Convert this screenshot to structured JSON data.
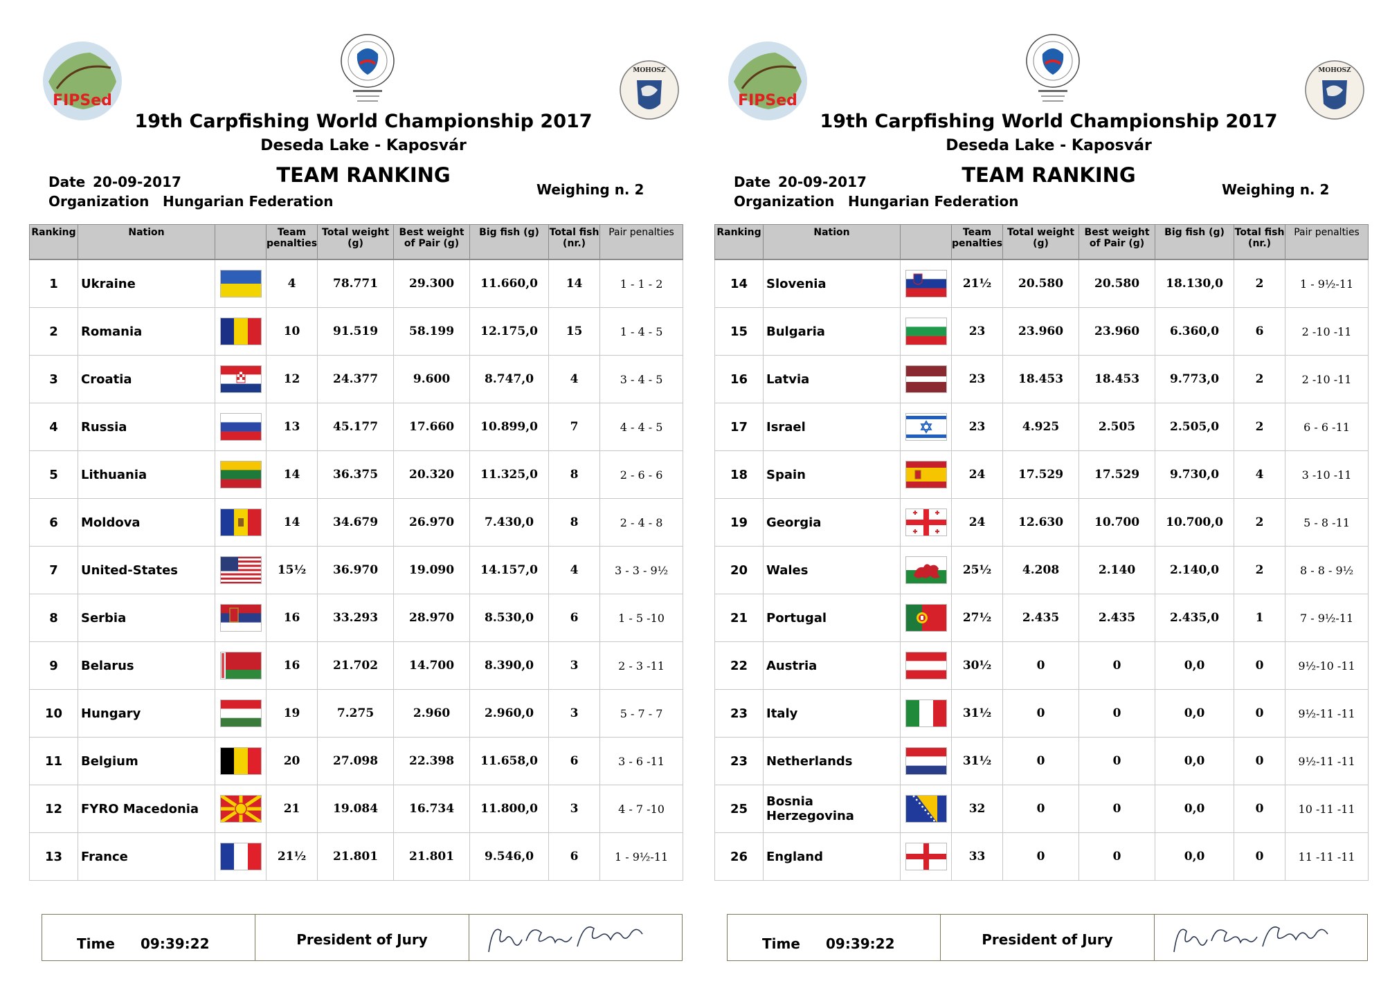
{
  "header": {
    "title": "19th Carpfishing World Championship 2017",
    "venue": "Deseda Lake - Kaposvár",
    "report": "TEAM RANKING",
    "date_label": "Date",
    "date": "20-09-2017",
    "organization_label": "Organization",
    "organization": "Hungarian Federation",
    "weighing": "Weighing n. 2",
    "fipsed_logo_text": "FIPSed",
    "mohosz_logo_text": "MOHOSZ"
  },
  "columns": {
    "ranking": "Ranking",
    "nation": "Nation",
    "team_penalties": "Team penalties",
    "total_weight": "Total weight (g)",
    "best_weight": "Best weight of Pair (g)",
    "big_fish": "Big fish (g)",
    "total_fish": "Total fish (nr.)",
    "pair_penalties": "Pair penalties"
  },
  "left_rows": [
    {
      "rank": "1",
      "nation": "Ukraine",
      "flag": "ukraine-flag-icon",
      "team_pen": "4",
      "total_weight": "78.771",
      "best_pair": "29.300",
      "big_fish": "11.660,0",
      "total_fish": "14",
      "pair_pen": "1 - 1 - 2"
    },
    {
      "rank": "2",
      "nation": "Romania",
      "flag": "romania-flag-icon",
      "team_pen": "10",
      "total_weight": "91.519",
      "best_pair": "58.199",
      "big_fish": "12.175,0",
      "total_fish": "15",
      "pair_pen": "1 - 4 - 5"
    },
    {
      "rank": "3",
      "nation": "Croatia",
      "flag": "croatia-flag-icon",
      "team_pen": "12",
      "total_weight": "24.377",
      "best_pair": "9.600",
      "big_fish": "8.747,0",
      "total_fish": "4",
      "pair_pen": "3 - 4 - 5"
    },
    {
      "rank": "4",
      "nation": "Russia",
      "flag": "russia-flag-icon",
      "team_pen": "13",
      "total_weight": "45.177",
      "best_pair": "17.660",
      "big_fish": "10.899,0",
      "total_fish": "7",
      "pair_pen": "4 - 4 - 5"
    },
    {
      "rank": "5",
      "nation": "Lithuania",
      "flag": "lithuania-flag-icon",
      "team_pen": "14",
      "total_weight": "36.375",
      "best_pair": "20.320",
      "big_fish": "11.325,0",
      "total_fish": "8",
      "pair_pen": "2 - 6 - 6"
    },
    {
      "rank": "6",
      "nation": "Moldova",
      "flag": "moldova-flag-icon",
      "team_pen": "14",
      "total_weight": "34.679",
      "best_pair": "26.970",
      "big_fish": "7.430,0",
      "total_fish": "8",
      "pair_pen": "2 - 4 - 8"
    },
    {
      "rank": "7",
      "nation": "United-States",
      "flag": "usa-flag-icon",
      "team_pen": "15½",
      "total_weight": "36.970",
      "best_pair": "19.090",
      "big_fish": "14.157,0",
      "total_fish": "4",
      "pair_pen": "3 - 3 - 9½"
    },
    {
      "rank": "8",
      "nation": "Serbia",
      "flag": "serbia-flag-icon",
      "team_pen": "16",
      "total_weight": "33.293",
      "best_pair": "28.970",
      "big_fish": "8.530,0",
      "total_fish": "6",
      "pair_pen": "1 - 5 -10"
    },
    {
      "rank": "9",
      "nation": "Belarus",
      "flag": "belarus-flag-icon",
      "team_pen": "16",
      "total_weight": "21.702",
      "best_pair": "14.700",
      "big_fish": "8.390,0",
      "total_fish": "3",
      "pair_pen": "2 - 3 -11"
    },
    {
      "rank": "10",
      "nation": "Hungary",
      "flag": "hungary-flag-icon",
      "team_pen": "19",
      "total_weight": "7.275",
      "best_pair": "2.960",
      "big_fish": "2.960,0",
      "total_fish": "3",
      "pair_pen": "5 - 7 - 7"
    },
    {
      "rank": "11",
      "nation": "Belgium",
      "flag": "belgium-flag-icon",
      "team_pen": "20",
      "total_weight": "27.098",
      "best_pair": "22.398",
      "big_fish": "11.658,0",
      "total_fish": "6",
      "pair_pen": "3 - 6 -11"
    },
    {
      "rank": "12",
      "nation": "FYRO Macedonia",
      "flag": "macedonia-flag-icon",
      "team_pen": "21",
      "total_weight": "19.084",
      "best_pair": "16.734",
      "big_fish": "11.800,0",
      "total_fish": "3",
      "pair_pen": "4 - 7 -10"
    },
    {
      "rank": "13",
      "nation": "France",
      "flag": "france-flag-icon",
      "team_pen": "21½",
      "total_weight": "21.801",
      "best_pair": "21.801",
      "big_fish": "9.546,0",
      "total_fish": "6",
      "pair_pen": "1 - 9½-11"
    }
  ],
  "right_rows": [
    {
      "rank": "14",
      "nation": "Slovenia",
      "flag": "slovenia-flag-icon",
      "team_pen": "21½",
      "total_weight": "20.580",
      "best_pair": "20.580",
      "big_fish": "18.130,0",
      "total_fish": "2",
      "pair_pen": "1 - 9½-11"
    },
    {
      "rank": "15",
      "nation": "Bulgaria",
      "flag": "bulgaria-flag-icon",
      "team_pen": "23",
      "total_weight": "23.960",
      "best_pair": "23.960",
      "big_fish": "6.360,0",
      "total_fish": "6",
      "pair_pen": "2 -10 -11"
    },
    {
      "rank": "16",
      "nation": "Latvia",
      "flag": "latvia-flag-icon",
      "team_pen": "23",
      "total_weight": "18.453",
      "best_pair": "18.453",
      "big_fish": "9.773,0",
      "total_fish": "2",
      "pair_pen": "2 -10 -11"
    },
    {
      "rank": "17",
      "nation": "Israel",
      "flag": "israel-flag-icon",
      "team_pen": "23",
      "total_weight": "4.925",
      "best_pair": "2.505",
      "big_fish": "2.505,0",
      "total_fish": "2",
      "pair_pen": "6 - 6 -11"
    },
    {
      "rank": "18",
      "nation": "Spain",
      "flag": "spain-flag-icon",
      "team_pen": "24",
      "total_weight": "17.529",
      "best_pair": "17.529",
      "big_fish": "9.730,0",
      "total_fish": "4",
      "pair_pen": "3 -10 -11"
    },
    {
      "rank": "19",
      "nation": "Georgia",
      "flag": "georgia-flag-icon",
      "team_pen": "24",
      "total_weight": "12.630",
      "best_pair": "10.700",
      "big_fish": "10.700,0",
      "total_fish": "2",
      "pair_pen": "5 - 8 -11"
    },
    {
      "rank": "20",
      "nation": "Wales",
      "flag": "wales-flag-icon",
      "team_pen": "25½",
      "total_weight": "4.208",
      "best_pair": "2.140",
      "big_fish": "2.140,0",
      "total_fish": "2",
      "pair_pen": "8 - 8 - 9½"
    },
    {
      "rank": "21",
      "nation": "Portugal",
      "flag": "portugal-flag-icon",
      "team_pen": "27½",
      "total_weight": "2.435",
      "best_pair": "2.435",
      "big_fish": "2.435,0",
      "total_fish": "1",
      "pair_pen": "7 - 9½-11"
    },
    {
      "rank": "22",
      "nation": "Austria",
      "flag": "austria-flag-icon",
      "team_pen": "30½",
      "total_weight": "0",
      "best_pair": "0",
      "big_fish": "0,0",
      "total_fish": "0",
      "pair_pen": "9½-10 -11"
    },
    {
      "rank": "23",
      "nation": "Italy",
      "flag": "italy-flag-icon",
      "team_pen": "31½",
      "total_weight": "0",
      "best_pair": "0",
      "big_fish": "0,0",
      "total_fish": "0",
      "pair_pen": "9½-11 -11"
    },
    {
      "rank": "23",
      "nation": "Netherlands",
      "flag": "netherlands-flag-icon",
      "team_pen": "31½",
      "total_weight": "0",
      "best_pair": "0",
      "big_fish": "0,0",
      "total_fish": "0",
      "pair_pen": "9½-11 -11"
    },
    {
      "rank": "25",
      "nation": "Bosnia Herzegovina",
      "flag": "bosnia-flag-icon",
      "team_pen": "32",
      "total_weight": "0",
      "best_pair": "0",
      "big_fish": "0,0",
      "total_fish": "0",
      "pair_pen": "10 -11 -11"
    },
    {
      "rank": "26",
      "nation": "England",
      "flag": "england-flag-icon",
      "team_pen": "33",
      "total_weight": "0",
      "best_pair": "0",
      "big_fish": "0,0",
      "total_fish": "0",
      "pair_pen": "11 -11 -11"
    }
  ],
  "footer": {
    "time_label": "Time",
    "time": "09:39:22",
    "jury_label": "President of Jury"
  }
}
